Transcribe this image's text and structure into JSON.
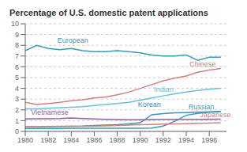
{
  "chart_data": {
    "type": "line",
    "title": "Percentage of U.S. domestic patent applications",
    "x": [
      1980,
      1981,
      1982,
      1983,
      1984,
      1985,
      1986,
      1987,
      1988,
      1989,
      1990,
      1991,
      1992,
      1993,
      1994,
      1995,
      1996,
      1997
    ],
    "series": [
      {
        "name": "European",
        "color": "#3a9bb0",
        "values": [
          7.5,
          8.0,
          7.7,
          7.6,
          7.7,
          7.5,
          7.4,
          7.4,
          7.5,
          7.4,
          7.3,
          7.1,
          7.0,
          7.0,
          7.1,
          6.6,
          6.9,
          6.9
        ]
      },
      {
        "name": "Chinese",
        "color": "#d08080",
        "values": [
          2.7,
          2.5,
          2.6,
          2.7,
          2.85,
          2.95,
          3.1,
          3.2,
          3.4,
          3.65,
          4.0,
          4.35,
          4.7,
          4.95,
          5.15,
          5.5,
          5.7,
          5.85
        ]
      },
      {
        "name": "Indian",
        "color": "#68c0d8",
        "values": [
          2.1,
          2.1,
          2.15,
          2.2,
          2.25,
          2.3,
          2.4,
          2.5,
          2.6,
          2.7,
          2.9,
          3.1,
          3.3,
          3.5,
          3.65,
          3.8,
          3.92,
          4.0
        ]
      },
      {
        "name": "Vietnamese",
        "color": "#9060a0",
        "values": [
          1.15,
          1.18,
          1.18,
          1.2,
          1.25,
          1.2,
          1.15,
          1.12,
          1.1,
          1.08,
          1.08,
          1.1,
          1.12,
          1.13,
          1.13,
          1.13,
          1.13,
          1.14
        ]
      },
      {
        "name": "Korean",
        "color": "#4090b8",
        "values": [
          0.42,
          0.42,
          0.44,
          0.46,
          0.48,
          0.5,
          0.55,
          0.58,
          0.62,
          0.7,
          0.8,
          1.55,
          1.65,
          1.72,
          1.75,
          1.78,
          1.82,
          1.85
        ]
      },
      {
        "name": "Russian",
        "color": "#3a9bb0",
        "values": [
          0.28,
          0.28,
          0.28,
          0.28,
          0.29,
          0.29,
          0.3,
          0.3,
          0.3,
          0.3,
          0.3,
          0.32,
          0.5,
          0.95,
          1.5,
          1.68,
          1.78,
          1.82
        ]
      },
      {
        "name": "Japanese",
        "color": "#d08080",
        "values": [
          0.45,
          0.45,
          0.46,
          0.47,
          0.47,
          0.48,
          0.5,
          0.52,
          0.55,
          0.58,
          0.62,
          0.65,
          0.68,
          0.7,
          0.72,
          0.75,
          0.78,
          0.8
        ]
      }
    ],
    "xlim": [
      1980,
      1997.5
    ],
    "xticks": [
      1980,
      1982,
      1984,
      1986,
      1988,
      1990,
      1992,
      1994,
      1996
    ],
    "ylim": [
      0,
      10
    ],
    "yticks": [
      0,
      1,
      2,
      3,
      4,
      5,
      6,
      7,
      8,
      9,
      10
    ],
    "grid": true,
    "annotations": [
      {
        "text": "European",
        "x": 1982.8,
        "y": 8.25
      },
      {
        "text": "Chinese",
        "x": 1994.3,
        "y": 6.05
      },
      {
        "text": "Indian",
        "x": 1991.2,
        "y": 3.65
      },
      {
        "text": "Vietnamese",
        "x": 1980.5,
        "y": 1.52
      },
      {
        "text": "Korean",
        "x": 1989.8,
        "y": 2.28
      },
      {
        "text": "Russian",
        "x": 1994.2,
        "y": 2.08
      },
      {
        "text": "Japanese",
        "x": 1995.2,
        "y": 1.3
      }
    ]
  }
}
